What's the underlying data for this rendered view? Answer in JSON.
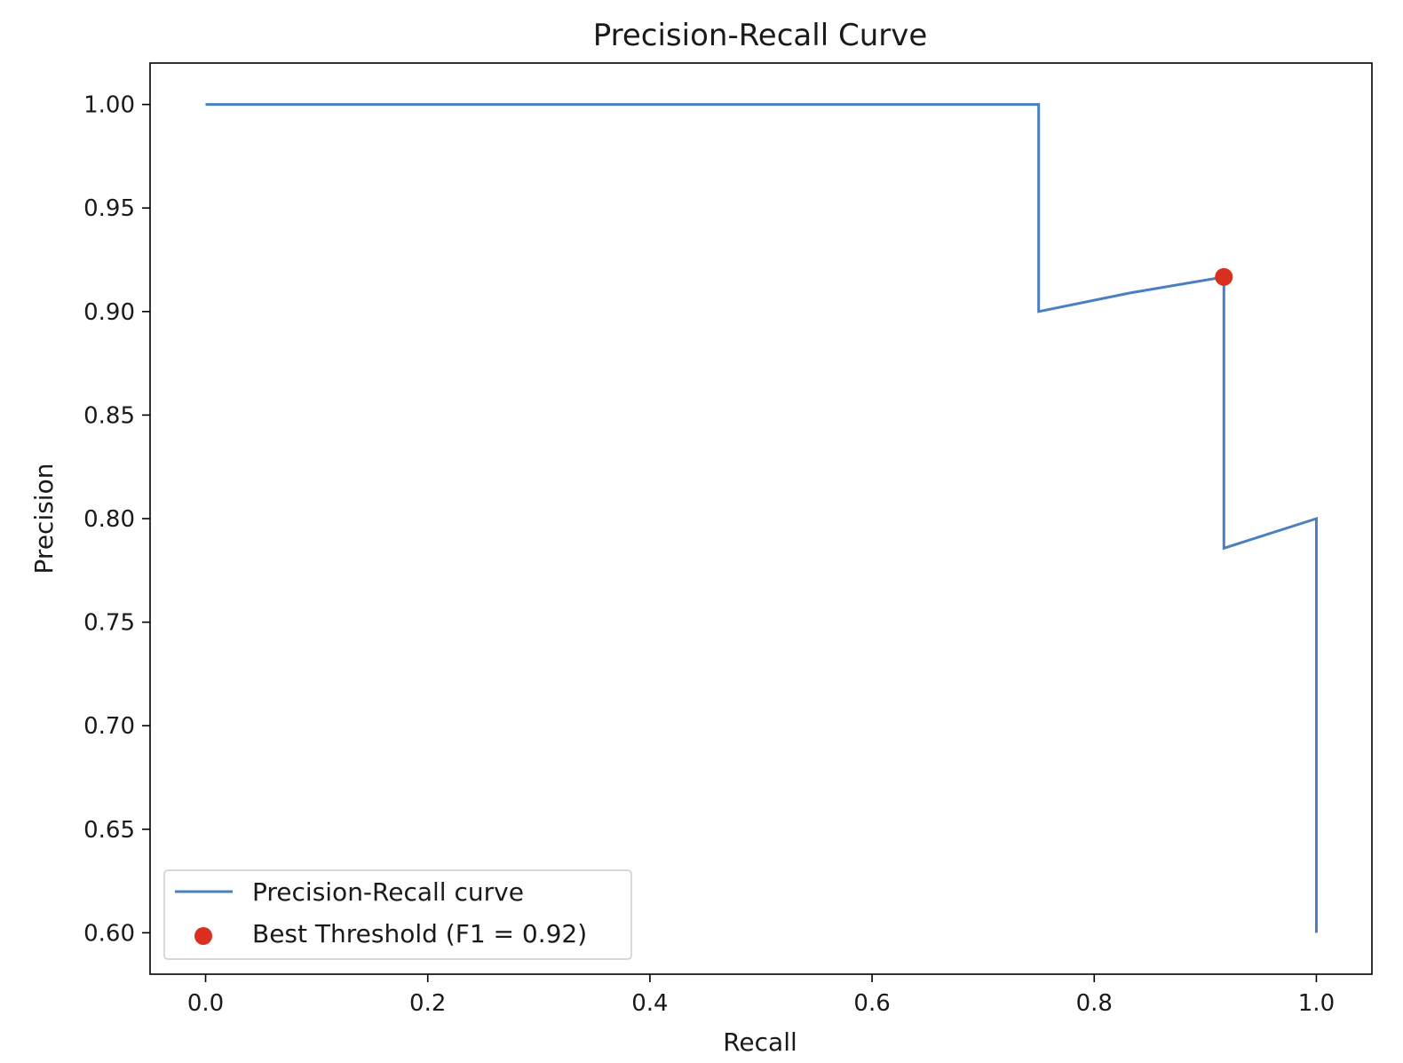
{
  "chart_data": {
    "type": "line",
    "title": "Precision-Recall Curve",
    "xlabel": "Recall",
    "ylabel": "Precision",
    "xlim": [
      -0.05,
      1.05
    ],
    "ylim": [
      0.58,
      1.02
    ],
    "xticks": [
      0.0,
      0.2,
      0.4,
      0.6,
      0.8,
      1.0
    ],
    "xtick_labels": [
      "0.0",
      "0.2",
      "0.4",
      "0.6",
      "0.8",
      "1.0"
    ],
    "yticks": [
      0.6,
      0.65,
      0.7,
      0.75,
      0.8,
      0.85,
      0.9,
      0.95,
      1.0
    ],
    "ytick_labels": [
      "0.60",
      "0.65",
      "0.70",
      "0.75",
      "0.80",
      "0.85",
      "0.90",
      "0.95",
      "1.00"
    ],
    "grid": false,
    "legend_position": "lower-left",
    "series": [
      {
        "name": "Precision-Recall curve",
        "kind": "line",
        "color": "#4a7fc1",
        "x": [
          0.0,
          0.75,
          0.75,
          0.8333,
          0.9167,
          0.9167,
          1.0,
          1.0
        ],
        "y": [
          1.0,
          1.0,
          0.9,
          0.9091,
          0.9167,
          0.7857,
          0.8,
          0.6
        ]
      },
      {
        "name": "Best Threshold (F1 = 0.92)",
        "kind": "scatter",
        "color": "#d9301f",
        "x": [
          0.9167
        ],
        "y": [
          0.9167
        ]
      }
    ]
  }
}
